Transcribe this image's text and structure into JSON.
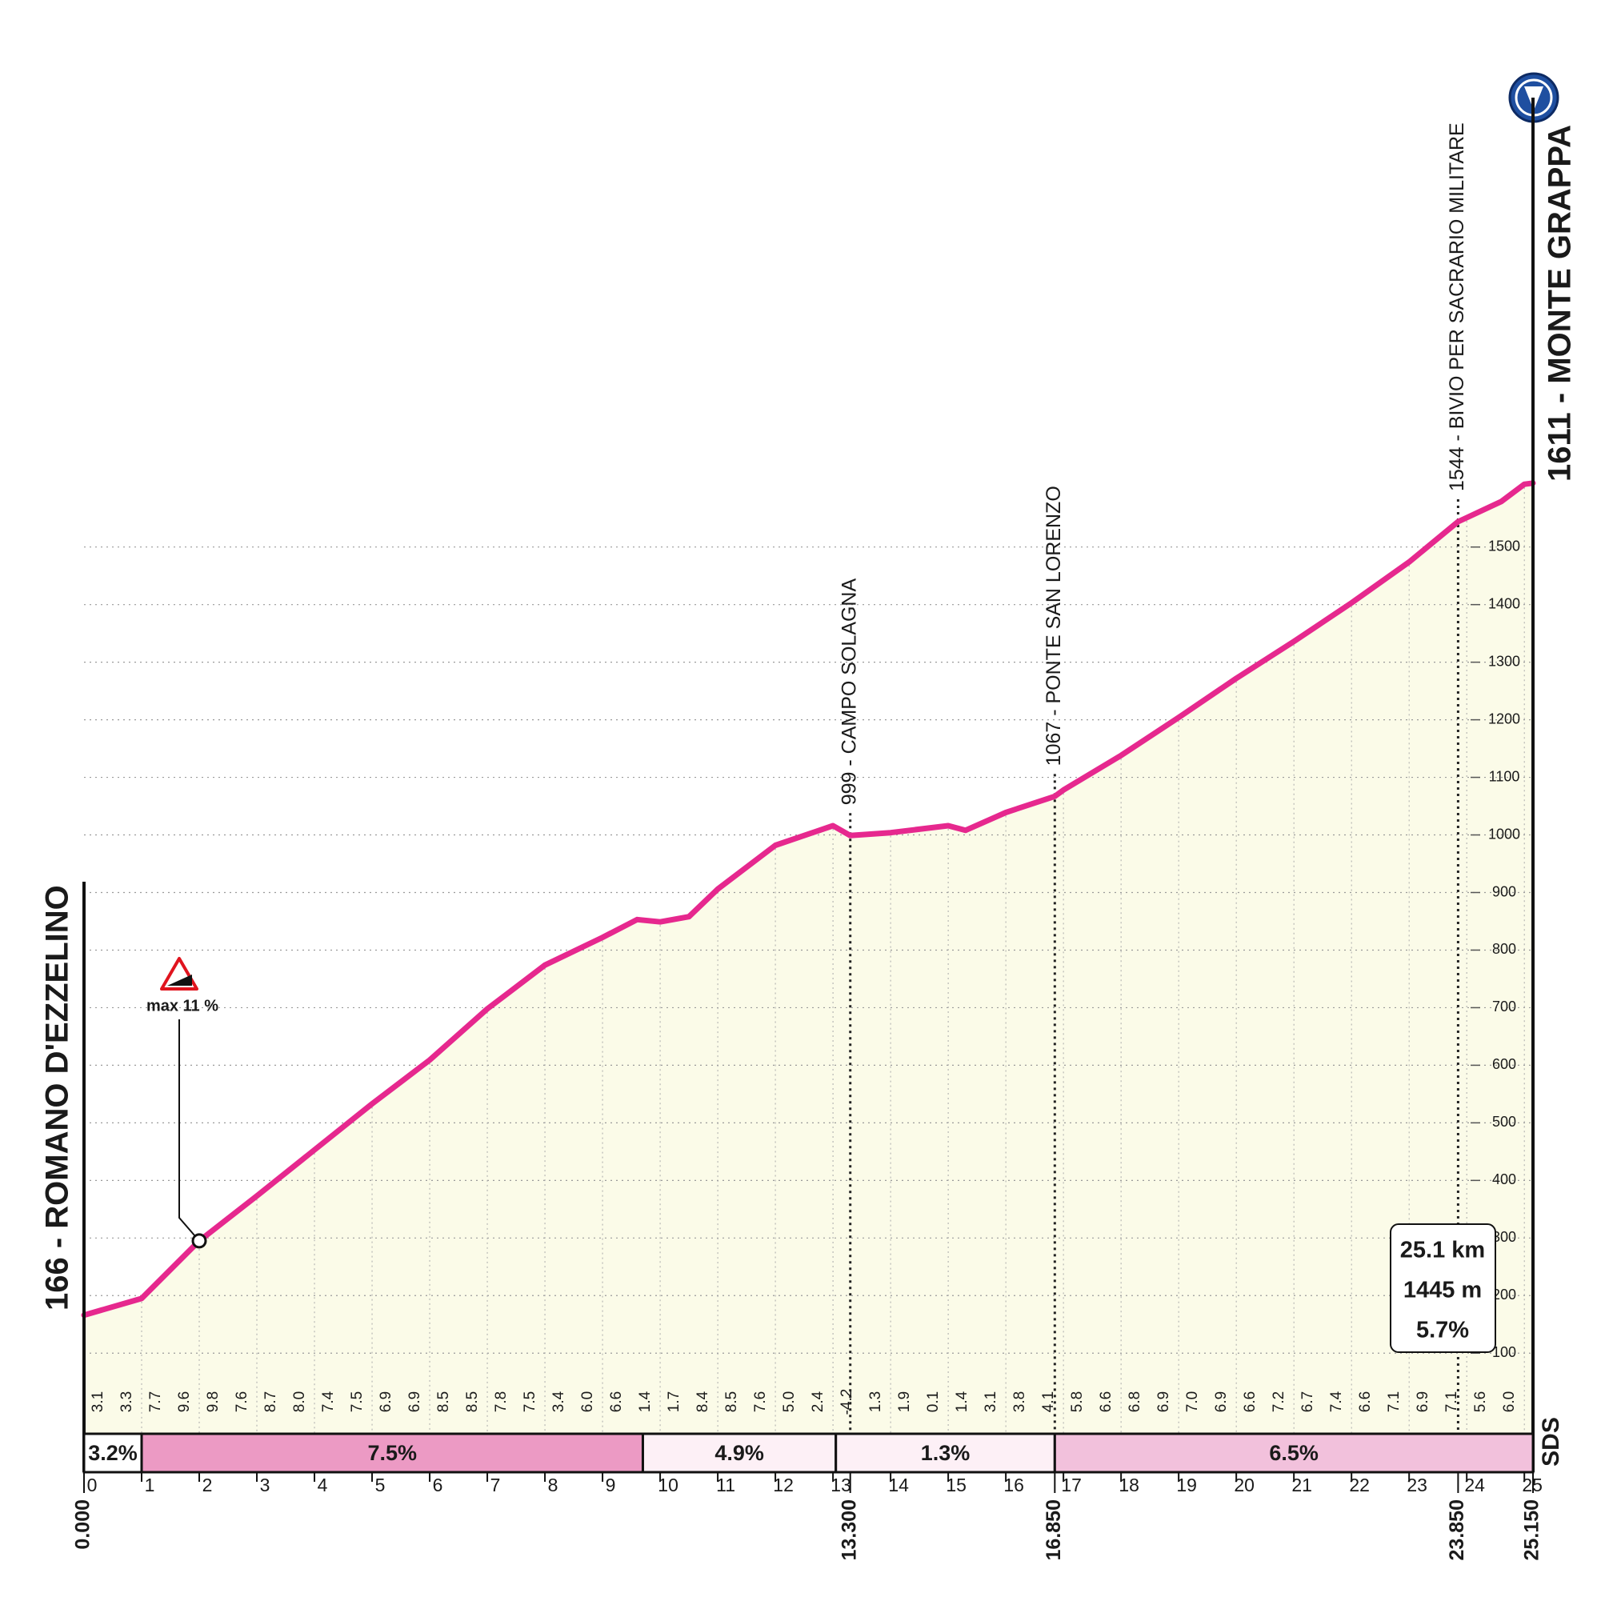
{
  "chart_data": {
    "type": "elevation-profile",
    "start_label": "166 - ROMANO D'EZZELINO",
    "finish_label": "1611 - MONTE GRAPPA",
    "x": [
      0,
      1,
      2,
      3,
      4,
      5,
      6,
      7,
      8,
      9,
      9.6,
      10,
      10.5,
      11,
      12,
      13,
      13.3,
      14,
      15,
      15.3,
      16,
      16.85,
      17,
      18,
      19,
      20,
      21,
      22,
      23,
      23.85,
      24,
      24.6,
      25,
      25.15
    ],
    "values": [
      166,
      195,
      295,
      373,
      453,
      533,
      609,
      698,
      774,
      822,
      853,
      849,
      858,
      906,
      982,
      1016,
      999,
      1004,
      1016,
      1008,
      1039,
      1067,
      1078,
      1138,
      1204,
      1272,
      1336,
      1403,
      1474,
      1544,
      1551,
      1579,
      1609,
      1611
    ],
    "color": "#e6288e",
    "fill_color": "#fbfbe8",
    "xlim": [
      0,
      25.15
    ],
    "ylim": [
      -40,
      2450
    ],
    "xticks": [
      0,
      1,
      2,
      3,
      4,
      5,
      6,
      7,
      8,
      9,
      10,
      11,
      12,
      13,
      14,
      15,
      16,
      17,
      18,
      19,
      20,
      21,
      22,
      23,
      24,
      25
    ],
    "yticks": [
      100,
      200,
      300,
      400,
      500,
      600,
      700,
      800,
      900,
      1000,
      1100,
      1200,
      1300,
      1400,
      1500
    ],
    "grid": true,
    "km_markers": [
      {
        "value": 0,
        "label": "0.000"
      },
      {
        "value": 13.3,
        "label": "13.300"
      },
      {
        "value": 16.85,
        "label": "16.850"
      },
      {
        "value": 23.85,
        "label": "23.850"
      },
      {
        "value": 25.15,
        "label": "25.150"
      }
    ],
    "waypoints": [
      {
        "km": 13.3,
        "label": "999 - CAMPO SOLAGNA"
      },
      {
        "km": 16.85,
        "label": "1067 - PONTE SAN LORENZO"
      },
      {
        "km": 23.85,
        "label": "1544 - BIVIO PER SACRARIO MILITARE"
      }
    ],
    "gradients": {
      "values": [
        3.1,
        3.3,
        7.7,
        9.6,
        9.8,
        7.6,
        8.7,
        8.0,
        7.4,
        7.5,
        6.9,
        6.9,
        8.5,
        8.5,
        7.8,
        7.5,
        3.4,
        6.0,
        6.6,
        1.4,
        1.7,
        8.4,
        8.5,
        7.6,
        5.0,
        2.4,
        -4.2,
        1.3,
        1.9,
        0.1,
        1.4,
        3.1,
        3.8,
        4.1,
        5.8,
        6.6,
        6.8,
        6.9,
        7.0,
        6.9,
        6.6,
        7.2,
        6.7,
        7.4,
        6.6,
        7.1,
        6.9,
        7.1,
        5.6,
        6.0
      ],
      "value_labels": [
        "3.1",
        "3.3",
        "7.7",
        "9.6",
        "9.8",
        "7.6",
        "8.7",
        "8.0",
        "7.4",
        "7.5",
        "6.9",
        "6.9",
        "8.5",
        "8.5",
        "7.8",
        "7.5",
        "3.4",
        "6.0",
        "6.6",
        "1.4",
        "1.7",
        "8.4",
        "8.5",
        "7.6",
        "5.0",
        "2.4",
        "-4.2",
        "1.3",
        "1.9",
        "0.1",
        "1.4",
        "3.1",
        "3.8",
        "4.1",
        "5.8",
        "6.6",
        "6.8",
        "6.9",
        "7.0",
        "6.9",
        "6.6",
        "7.2",
        "6.7",
        "7.4",
        "6.6",
        "7.1",
        "6.9",
        "7.1",
        "5.6",
        "6.0"
      ]
    },
    "segments": [
      {
        "from": 0,
        "to": 1,
        "grade": 3.2,
        "label": "3.2%",
        "color": "#ffffff"
      },
      {
        "from": 1,
        "to": 9.7,
        "grade": 7.5,
        "label": "7.5%",
        "color": "#ec9ac4"
      },
      {
        "from": 9.7,
        "to": 13.05,
        "grade": 4.9,
        "label": "4.9%",
        "color": "#fdf0f6"
      },
      {
        "from": 13.05,
        "to": 16.85,
        "grade": 1.3,
        "label": "1.3%",
        "color": "#fdf0f6"
      },
      {
        "from": 16.85,
        "to": 25.15,
        "grade": 6.5,
        "label": "6.5%",
        "color": "#f2c1dc"
      }
    ],
    "max_gradient": {
      "km": 2,
      "label": "max 11 %"
    },
    "summary": [
      "25.1 km",
      "1445 m",
      "5.7%"
    ],
    "logo": "SDS"
  }
}
